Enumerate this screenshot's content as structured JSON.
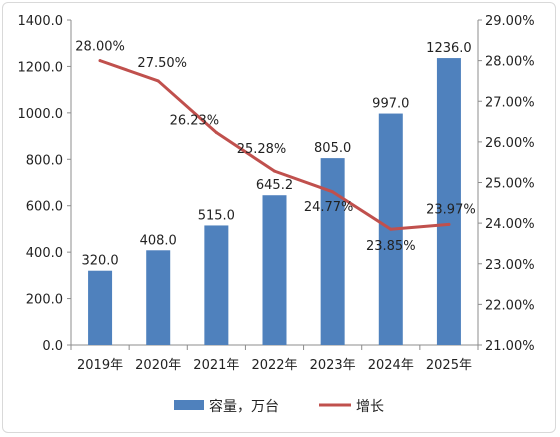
{
  "chart_data": {
    "type": "bar",
    "categories": [
      "2019年",
      "2020年",
      "2021年",
      "2022年",
      "2023年",
      "2024年",
      "2025年"
    ],
    "series": [
      {
        "name": "容量，万台",
        "kind": "bar",
        "axis": "left",
        "color": "#4f81bd",
        "values": [
          320.0,
          408.0,
          515.0,
          645.2,
          805.0,
          997.0,
          1236.0
        ],
        "labels": [
          "320.0",
          "408.0",
          "515.0",
          "645.2",
          "805.0",
          "997.0",
          "1236.0"
        ]
      },
      {
        "name": "增长",
        "kind": "line",
        "axis": "right",
        "color": "#c0504d",
        "values": [
          28.0,
          27.5,
          26.23,
          25.28,
          24.77,
          23.85,
          23.97
        ],
        "labels": [
          "28.00%",
          "27.50%",
          "26.23%",
          "25.28%",
          "24.77%",
          "23.85%",
          "23.97%"
        ]
      }
    ],
    "left_axis": {
      "min": 0,
      "max": 1400,
      "step": 200,
      "tick_labels": [
        "0.0",
        "200.0",
        "400.0",
        "600.0",
        "800.0",
        "1000.0",
        "1200.0",
        "1400.0"
      ]
    },
    "right_axis": {
      "min": 21,
      "max": 29,
      "step": 1,
      "tick_labels": [
        "21.00%",
        "22.00%",
        "23.00%",
        "24.00%",
        "25.00%",
        "26.00%",
        "27.00%",
        "28.00%",
        "29.00%"
      ]
    },
    "grid": false,
    "legend": {
      "position": "bottom"
    }
  }
}
